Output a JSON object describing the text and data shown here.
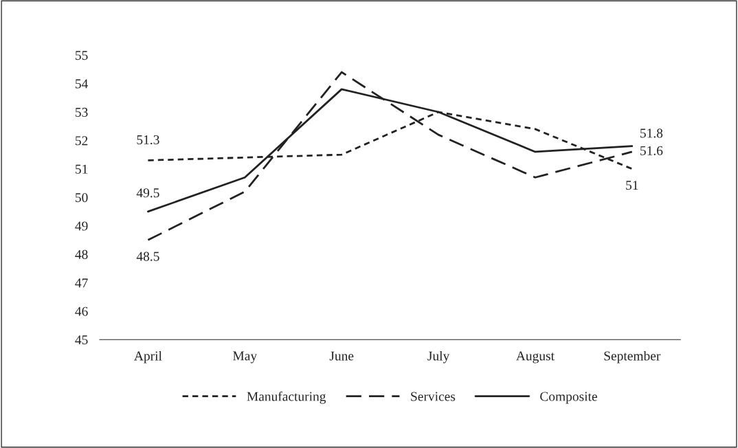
{
  "chart_data": {
    "type": "line",
    "categories": [
      "April",
      "May",
      "June",
      "July",
      "August",
      "September"
    ],
    "series": [
      {
        "name": "Manufacturing",
        "color": "#222222",
        "line_style": "dotted",
        "values": [
          51.3,
          51.4,
          51.5,
          53.0,
          52.4,
          51
        ],
        "value_labels": [
          "51.3",
          null,
          null,
          null,
          null,
          "51"
        ]
      },
      {
        "name": "Services",
        "color": "#222222",
        "line_style": "dashed",
        "values": [
          48.5,
          50.2,
          54.4,
          52.2,
          50.7,
          51.6
        ],
        "value_labels": [
          "48.5",
          null,
          null,
          null,
          null,
          "51.6"
        ]
      },
      {
        "name": "Composite",
        "color": "#222222",
        "line_style": "solid",
        "values": [
          49.5,
          50.7,
          53.8,
          53.0,
          51.6,
          51.8
        ],
        "value_labels": [
          "49.5",
          null,
          null,
          null,
          null,
          "51.8"
        ]
      }
    ],
    "ylim": [
      45,
      55
    ],
    "yticks": [
      45,
      46,
      47,
      48,
      49,
      50,
      51,
      52,
      53,
      54,
      55
    ],
    "grid": false,
    "legend": "bottom"
  }
}
